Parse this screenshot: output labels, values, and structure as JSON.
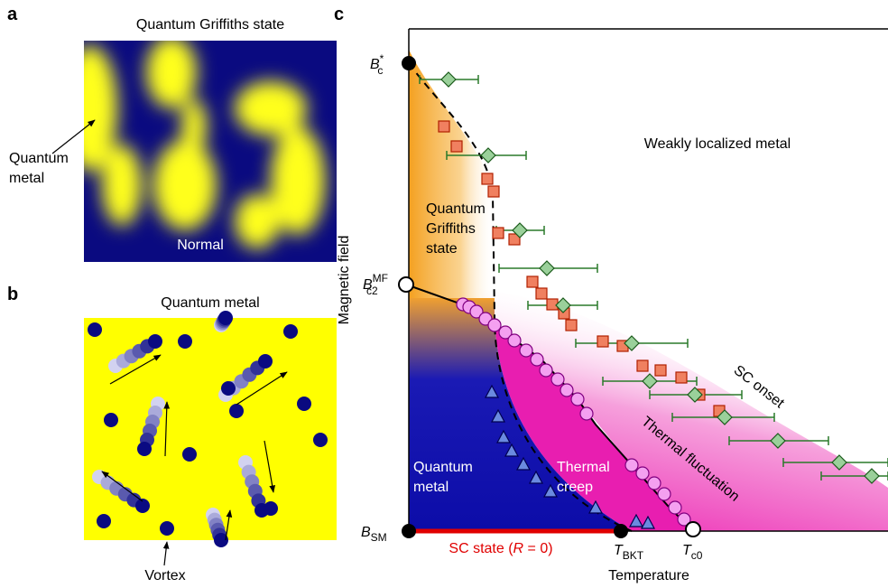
{
  "panels": {
    "a": {
      "letter": "a",
      "title": "Quantum Griffiths state",
      "pointer_label": [
        "Quantum",
        "metal"
      ],
      "region_label": "Normal"
    },
    "b": {
      "letter": "b",
      "title": "Quantum metal",
      "pointer_label": "Vortex"
    },
    "c": {
      "letter": "c",
      "y_axis_title": "Magnetic field",
      "x_axis_title": "Temperature",
      "y_marks": {
        "bc_star": {
          "main": "B",
          "sub": "c",
          "sup": "*"
        },
        "bc2_mf": {
          "main": "B",
          "sub": "c2",
          "sup": "MF"
        },
        "bsm": {
          "main": "B",
          "sub": "SM"
        }
      },
      "x_marks": {
        "tbkt": {
          "main": "T",
          "sub": "BKT"
        },
        "tc0": {
          "main": "T",
          "sub": "c0"
        }
      },
      "regions": {
        "weakly_localized": "Weakly localized metal",
        "griffiths": [
          "Quantum",
          "Griffiths",
          "state"
        ],
        "quantum_metal": [
          "Quantum",
          "metal"
        ],
        "thermal_creep": [
          "Thermal",
          "creep"
        ],
        "thermal_fluctuation": "Thermal fluctuation",
        "sc_onset": "SC onset",
        "sc_state": [
          "SC state (",
          "R",
          " = 0)"
        ]
      }
    }
  }
}
